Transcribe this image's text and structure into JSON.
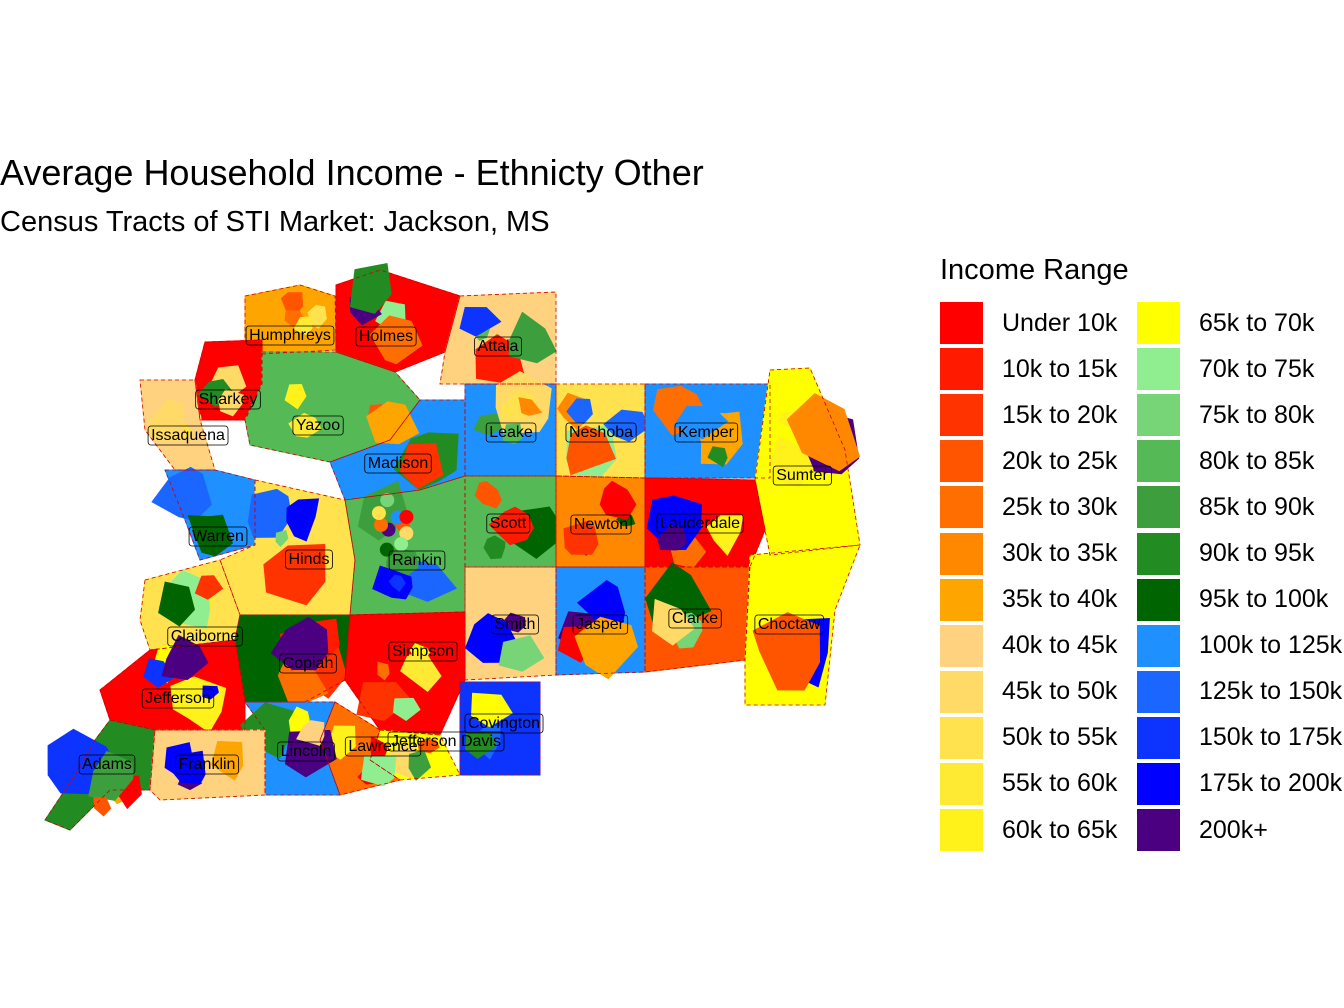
{
  "title": "Average Household Income - Ethnicty Other",
  "subtitle": "Census Tracts of STI Market: Jackson, MS",
  "legend": {
    "title": "Income Range",
    "items": [
      {
        "label": "Under 10k",
        "color": "#FF0000"
      },
      {
        "label": "10k to 15k",
        "color": "#FF1A00"
      },
      {
        "label": "15k to 20k",
        "color": "#FF3300"
      },
      {
        "label": "20k to 25k",
        "color": "#FF5500"
      },
      {
        "label": "25k to 30k",
        "color": "#FF6E00"
      },
      {
        "label": "30k to 35k",
        "color": "#FF8800"
      },
      {
        "label": "35k to 40k",
        "color": "#FFA500"
      },
      {
        "label": "40k to 45k",
        "color": "#FFD27F"
      },
      {
        "label": "45k to 50k",
        "color": "#FFDA66"
      },
      {
        "label": "50k to 55k",
        "color": "#FFE24D"
      },
      {
        "label": "55k to 60k",
        "color": "#FFEA33"
      },
      {
        "label": "60k to 65k",
        "color": "#FFF21A"
      },
      {
        "label": "65k to 70k",
        "color": "#FFFF00"
      },
      {
        "label": "70k to 75k",
        "color": "#90EE90"
      },
      {
        "label": "75k to 80k",
        "color": "#77D477"
      },
      {
        "label": "80k to 85k",
        "color": "#55B955"
      },
      {
        "label": "85k to 90k",
        "color": "#3D9E3D"
      },
      {
        "label": "90k to 95k",
        "color": "#228B22"
      },
      {
        "label": "95k to 100k",
        "color": "#006400"
      },
      {
        "label": "100k to 125k",
        "color": "#1E90FF"
      },
      {
        "label": "125k to 150k",
        "color": "#1A66FF"
      },
      {
        "label": "150k to 175k",
        "color": "#0D33FF"
      },
      {
        "label": "175k to 200k",
        "color": "#0000FF"
      },
      {
        "label": "200k+",
        "color": "#4B0082"
      }
    ]
  },
  "counties": [
    {
      "name": "Humphreys",
      "color": "#FFA500"
    },
    {
      "name": "Holmes",
      "color": "#FF0000"
    },
    {
      "name": "Attala",
      "color": "#FFD27F"
    },
    {
      "name": "Sharkey",
      "color": "#FF0000"
    },
    {
      "name": "Issaquena",
      "color": "#FFD27F"
    },
    {
      "name": "Yazoo",
      "color": "#55B955"
    },
    {
      "name": "Leake",
      "color": "#1E90FF"
    },
    {
      "name": "Neshoba",
      "color": "#FFE24D"
    },
    {
      "name": "Kemper",
      "color": "#1E90FF"
    },
    {
      "name": "Madison",
      "color": "#1E90FF"
    },
    {
      "name": "Sumter",
      "color": "#FFFF00"
    },
    {
      "name": "Warren",
      "color": "#1E90FF"
    },
    {
      "name": "Scott",
      "color": "#55B955"
    },
    {
      "name": "Newton",
      "color": "#FF8800"
    },
    {
      "name": "Lauderdale",
      "color": "#FF0000"
    },
    {
      "name": "Hinds",
      "color": "#FFE24D"
    },
    {
      "name": "Rankin",
      "color": "#55B955"
    },
    {
      "name": "Claiborne",
      "color": "#FFE24D"
    },
    {
      "name": "Smith",
      "color": "#FFD27F"
    },
    {
      "name": "Jasper",
      "color": "#1E90FF"
    },
    {
      "name": "Clarke",
      "color": "#FF5500"
    },
    {
      "name": "Choctaw",
      "color": "#FFFF00"
    },
    {
      "name": "Copiah",
      "color": "#006400"
    },
    {
      "name": "Simpson",
      "color": "#FF0000"
    },
    {
      "name": "Jefferson",
      "color": "#FF0000"
    },
    {
      "name": "Covington",
      "color": "#0D33FF"
    },
    {
      "name": "Jefferson Davis",
      "color": "#FFFF00"
    },
    {
      "name": "Lawrence",
      "color": "#FF6E00"
    },
    {
      "name": "Lincoln",
      "color": "#1E90FF"
    },
    {
      "name": "Adams",
      "color": "#228B22"
    },
    {
      "name": "Franklin",
      "color": "#FFD27F"
    }
  ]
}
